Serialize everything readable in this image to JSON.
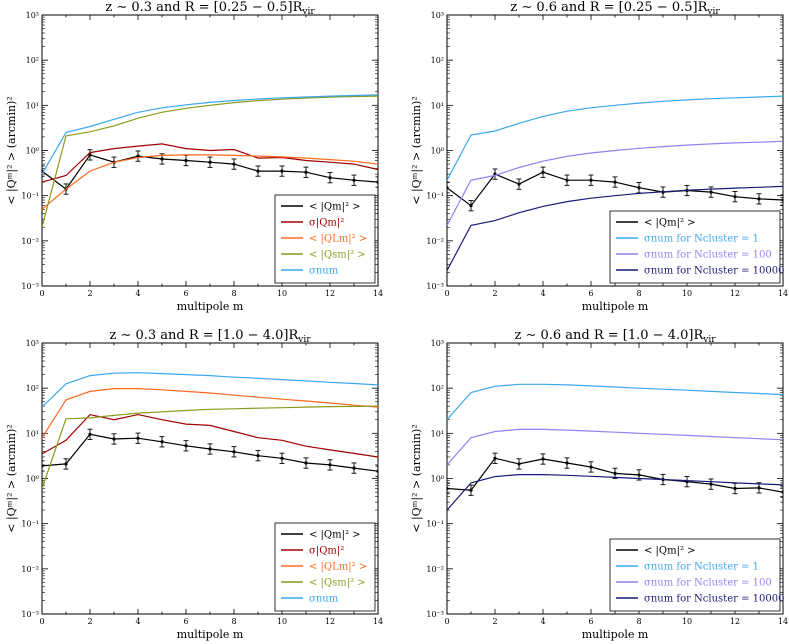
{
  "figure": {
    "colors": {
      "black": "#000000",
      "red": "#a00000",
      "orange": "#ff6a1f",
      "olive": "#8c9a1b",
      "lightblue": "#3aa8ee",
      "purple": "#9a7ef2",
      "navy": "#1a1a7a"
    }
  },
  "chart_data": [
    {
      "type": "line",
      "title": "z ∼ 0.3 and R = [0.25 − 0.5]R",
      "title_sub": "vir",
      "xlabel": "multipole m",
      "ylabel": "< |Qᵐ|² > (arcmin)²",
      "xlim": [
        0,
        14
      ],
      "ylim": [
        0.001,
        1000
      ],
      "yscale": "log",
      "x_ticks": [
        "0",
        "2",
        "4",
        "6",
        "8",
        "10",
        "12",
        "14"
      ],
      "y_ticks": [
        "10⁻³",
        "10⁻²",
        "10⁻¹",
        "10⁰",
        "10¹",
        "10²",
        "10³"
      ],
      "legend_position": "lower-right",
      "series": [
        {
          "name": "< |Qm|² >",
          "color": "#000000",
          "x": [
            0,
            1,
            2,
            3,
            4,
            5,
            6,
            7,
            8,
            9,
            10,
            11,
            12,
            13,
            14
          ],
          "values": [
            0.35,
            0.14,
            0.8,
            0.55,
            0.75,
            0.65,
            0.6,
            0.55,
            0.5,
            0.35,
            0.35,
            0.33,
            0.25,
            0.22,
            0.2
          ],
          "errorbars": true
        },
        {
          "name": "σ|Qm|²",
          "color": "#a00000",
          "x": [
            0,
            1,
            2,
            3,
            4,
            5,
            6,
            7,
            8,
            9,
            10,
            11,
            12,
            13,
            14
          ],
          "values": [
            0.2,
            0.28,
            0.9,
            1.1,
            1.25,
            1.4,
            1.1,
            1.0,
            1.05,
            0.68,
            0.7,
            0.6,
            0.55,
            0.5,
            0.38
          ]
        },
        {
          "name": "< |QLm|² >",
          "color": "#ff6a1f",
          "x": [
            0,
            1,
            2,
            3,
            4,
            5,
            6,
            7,
            8,
            9,
            10,
            11,
            12,
            13,
            14
          ],
          "values": [
            0.05,
            0.14,
            0.35,
            0.55,
            0.7,
            0.78,
            0.8,
            0.8,
            0.78,
            0.75,
            0.72,
            0.68,
            0.63,
            0.58,
            0.5
          ]
        },
        {
          "name": "< |Qsm|² >",
          "color": "#8c9a1b",
          "x": [
            0,
            1,
            2,
            3,
            4,
            5,
            6,
            7,
            8,
            9,
            10,
            11,
            12,
            13,
            14
          ],
          "values": [
            0.02,
            2.1,
            2.6,
            3.5,
            5.2,
            7.0,
            8.6,
            10.0,
            11.5,
            12.7,
            13.7,
            14.5,
            15.2,
            15.7,
            16.0
          ]
        },
        {
          "name": "σnum",
          "color": "#3aa8ee",
          "x": [
            0,
            1,
            2,
            3,
            4,
            5,
            6,
            7,
            8,
            9,
            10,
            11,
            12,
            13,
            14
          ],
          "values": [
            0.3,
            2.5,
            3.4,
            4.9,
            7.0,
            8.8,
            10.3,
            11.6,
            12.8,
            13.8,
            14.7,
            15.3,
            16.0,
            16.5,
            17.0
          ]
        }
      ]
    },
    {
      "type": "line",
      "title": "z ∼ 0.6 and R = [0.25 − 0.5]R",
      "title_sub": "vir",
      "xlabel": "multipole m",
      "ylabel": "< |Qᵐ|² > (arcmin)²",
      "xlim": [
        0,
        14
      ],
      "ylim": [
        0.001,
        1000
      ],
      "yscale": "log",
      "x_ticks": [
        "0",
        "2",
        "4",
        "6",
        "8",
        "10",
        "12",
        "14"
      ],
      "y_ticks": [
        "10⁻³",
        "10⁻²",
        "10⁻¹",
        "10⁰",
        "10¹",
        "10²",
        "10³"
      ],
      "legend_position": "lower-right",
      "series": [
        {
          "name": "< |Qm|² >",
          "color": "#000000",
          "x": [
            0,
            1,
            2,
            3,
            4,
            5,
            6,
            7,
            8,
            9,
            10,
            11,
            12,
            13,
            14
          ],
          "values": [
            0.15,
            0.06,
            0.3,
            0.18,
            0.33,
            0.22,
            0.22,
            0.2,
            0.15,
            0.12,
            0.13,
            0.12,
            0.095,
            0.085,
            0.08
          ],
          "errorbars": true
        },
        {
          "name": "σnum for Ncluster = 1",
          "color": "#3aa8ee",
          "x": [
            0,
            1,
            2,
            3,
            4,
            5,
            6,
            7,
            8,
            9,
            10,
            11,
            12,
            13,
            14
          ],
          "values": [
            0.22,
            2.2,
            2.7,
            4.0,
            5.7,
            7.4,
            8.8,
            10.0,
            11.2,
            12.3,
            13.2,
            14.0,
            14.7,
            15.3,
            16.0
          ]
        },
        {
          "name": "σnum for Ncluster = 100",
          "color": "#9a7ef2",
          "x": [
            0,
            1,
            2,
            3,
            4,
            5,
            6,
            7,
            8,
            9,
            10,
            11,
            12,
            13,
            14
          ],
          "values": [
            0.022,
            0.22,
            0.28,
            0.42,
            0.58,
            0.74,
            0.88,
            1.0,
            1.12,
            1.22,
            1.32,
            1.4,
            1.47,
            1.53,
            1.6
          ]
        },
        {
          "name": "σnum for Ncluster = 10000",
          "color": "#1a1a7a",
          "x": [
            0,
            1,
            2,
            3,
            4,
            5,
            6,
            7,
            8,
            9,
            10,
            11,
            12,
            13,
            14
          ],
          "values": [
            0.0022,
            0.022,
            0.028,
            0.042,
            0.058,
            0.074,
            0.088,
            0.1,
            0.112,
            0.122,
            0.132,
            0.14,
            0.147,
            0.153,
            0.16
          ]
        }
      ]
    },
    {
      "type": "line",
      "title": "z ∼ 0.3 and R = [1.0 − 4.0]R",
      "title_sub": "vir",
      "xlabel": "multipole m",
      "ylabel": "< |Qᵐ|² > (arcmin)²",
      "xlim": [
        0,
        14
      ],
      "ylim": [
        0.001,
        1000
      ],
      "yscale": "log",
      "x_ticks": [
        "0",
        "2",
        "4",
        "6",
        "8",
        "10",
        "12",
        "14"
      ],
      "y_ticks": [
        "10⁻³",
        "10⁻²",
        "10⁻¹",
        "10⁰",
        "10¹",
        "10²",
        "10³"
      ],
      "legend_position": "lower-right",
      "series": [
        {
          "name": "< |Qm|² >",
          "color": "#000000",
          "x": [
            0,
            1,
            2,
            3,
            4,
            5,
            6,
            7,
            8,
            9,
            10,
            11,
            12,
            13,
            14
          ],
          "values": [
            1.9,
            2.1,
            9.5,
            7.5,
            7.8,
            6.5,
            5.3,
            4.5,
            3.9,
            3.2,
            2.8,
            2.2,
            2.0,
            1.7,
            1.45
          ],
          "errorbars": true
        },
        {
          "name": "σ|Qm|²",
          "color": "#a00000",
          "x": [
            0,
            1,
            2,
            3,
            4,
            5,
            6,
            7,
            8,
            9,
            10,
            11,
            12,
            13,
            14
          ],
          "values": [
            3.5,
            7.0,
            26,
            20,
            26,
            20,
            16,
            15,
            11,
            8.0,
            7.0,
            5.2,
            4.3,
            3.6,
            3.0
          ]
        },
        {
          "name": "< |QLm|² >",
          "color": "#ff6a1f",
          "x": [
            0,
            1,
            2,
            3,
            4,
            5,
            6,
            7,
            8,
            9,
            10,
            11,
            12,
            13,
            14
          ],
          "values": [
            8.0,
            55,
            85,
            98,
            98,
            92,
            85,
            78,
            70,
            63,
            57,
            52,
            47,
            42,
            38
          ]
        },
        {
          "name": "< |Qsm|² >",
          "color": "#8c9a1b",
          "x": [
            0,
            1,
            2,
            3,
            4,
            5,
            6,
            7,
            8,
            9,
            10,
            11,
            12,
            13,
            14
          ],
          "values": [
            0.6,
            21,
            22,
            25,
            28,
            30,
            32,
            34,
            35,
            36,
            37,
            38,
            39,
            39.5,
            40
          ]
        },
        {
          "name": "σnum",
          "color": "#3aa8ee",
          "x": [
            0,
            1,
            2,
            3,
            4,
            5,
            6,
            7,
            8,
            9,
            10,
            11,
            12,
            13,
            14
          ],
          "values": [
            38,
            125,
            190,
            215,
            220,
            210,
            200,
            190,
            175,
            165,
            155,
            145,
            135,
            127,
            118
          ]
        }
      ]
    },
    {
      "type": "line",
      "title": "z ∼ 0.6 and R = [1.0 − 4.0]R",
      "title_sub": "vir",
      "xlabel": "multipole m",
      "ylabel": "< |Qᵐ|² > (arcmin)²",
      "xlim": [
        0,
        14
      ],
      "ylim": [
        0.001,
        1000
      ],
      "yscale": "log",
      "x_ticks": [
        "0",
        "2",
        "4",
        "6",
        "8",
        "10",
        "12",
        "14"
      ],
      "y_ticks": [
        "10⁻³",
        "10⁻²",
        "10⁻¹",
        "10⁰",
        "10¹",
        "10²",
        "10³"
      ],
      "legend_position": "lower-right",
      "series": [
        {
          "name": "< |Qm|² >",
          "color": "#000000",
          "x": [
            0,
            1,
            2,
            3,
            4,
            5,
            6,
            7,
            8,
            9,
            10,
            11,
            12,
            13,
            14
          ],
          "values": [
            0.6,
            0.55,
            2.8,
            2.1,
            2.7,
            2.2,
            1.8,
            1.3,
            1.2,
            0.95,
            0.85,
            0.75,
            0.6,
            0.62,
            0.5
          ],
          "errorbars": true
        },
        {
          "name": "σnum for Ncluster = 1",
          "color": "#3aa8ee",
          "x": [
            0,
            1,
            2,
            3,
            4,
            5,
            6,
            7,
            8,
            9,
            10,
            11,
            12,
            13,
            14
          ],
          "values": [
            20,
            80,
            110,
            122,
            122,
            118,
            112,
            106,
            100,
            95,
            90,
            85,
            80,
            76,
            72
          ]
        },
        {
          "name": "σnum for Ncluster = 100",
          "color": "#9a7ef2",
          "x": [
            0,
            1,
            2,
            3,
            4,
            5,
            6,
            7,
            8,
            9,
            10,
            11,
            12,
            13,
            14
          ],
          "values": [
            2.0,
            8.0,
            11.0,
            12.2,
            12.2,
            11.8,
            11.2,
            10.6,
            10.0,
            9.5,
            9.0,
            8.5,
            8.0,
            7.6,
            7.2
          ]
        },
        {
          "name": "σnum for Ncluster = 10000",
          "color": "#1a1a7a",
          "x": [
            0,
            1,
            2,
            3,
            4,
            5,
            6,
            7,
            8,
            9,
            10,
            11,
            12,
            13,
            14
          ],
          "values": [
            0.2,
            0.8,
            1.1,
            1.22,
            1.22,
            1.18,
            1.12,
            1.06,
            1.0,
            0.95,
            0.9,
            0.85,
            0.8,
            0.76,
            0.72
          ]
        }
      ]
    }
  ]
}
